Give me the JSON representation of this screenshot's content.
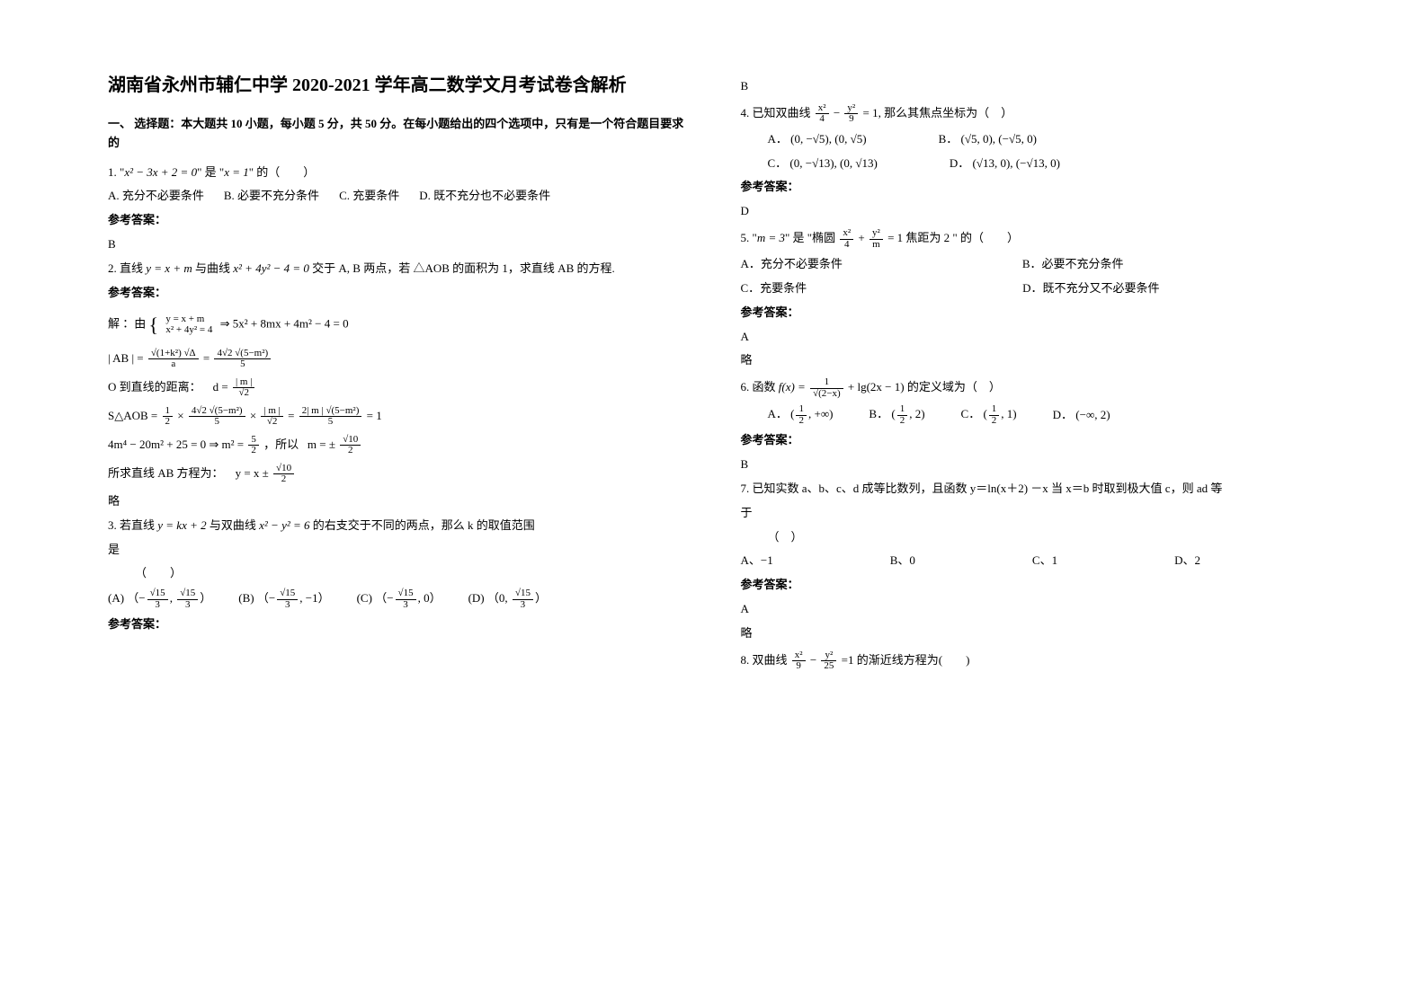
{
  "document": {
    "title": "湖南省永州市辅仁中学 2020-2021 学年高二数学文月考试卷含解析",
    "section1_heading": "一、 选择题：本大题共 10 小题，每小题 5 分，共 50 分。在每小题给出的四个选项中，只有是一个符合题目要求的",
    "answer_label": "参考答案：",
    "omit": "略"
  },
  "q1": {
    "stem_prefix": "1. \"",
    "expr1": "x² − 3x + 2 = 0",
    "mid": "\" 是 \"",
    "expr2": "x = 1",
    "suffix": "\" 的（　　）",
    "optA": "A. 充分不必要条件",
    "optB": "B. 必要不充分条件",
    "optC": "C. 充要条件",
    "optD": "D. 既不充分也不必要条件",
    "answer": "B"
  },
  "q2": {
    "stem_a": "2. 直线 ",
    "line": "y = x + m",
    "stem_b": " 与曲线 ",
    "curve": "x² + 4y² − 4 = 0",
    "stem_c": " 交于 A, B 两点，若 △AOB 的面积为 1，求直线 AB 的方程.",
    "sol_prefix": "解 ：由",
    "sys1": "y = x + m",
    "sys2": "x² + 4y² = 4",
    "sys_res": "⇒ 5x² + 8mx + 4m² − 4 = 0",
    "ab_label": "| AB | =",
    "ab_mid": "=",
    "ab_n1": "√(1+k²) √Δ",
    "ab_d1": "a",
    "ab_n2": "4√2 √(5−m²)",
    "ab_d2": "5",
    "dist_label": "O 到直线的距离：",
    "dist_d": "d =",
    "dist_n": "| m |",
    "dist_dd": "√2",
    "s_label": "S△AOB =",
    "s_part1n": "1",
    "s_part1d": "2",
    "s_part2n": "4√2 √(5−m²)",
    "s_part2d": "5",
    "s_part3n": "| m |",
    "s_part3d": "√2",
    "s_part4n": "2| m | √(5−m²)",
    "s_part4d": "5",
    "s_eq1": "= 1",
    "poly": "4m⁴ − 20m² + 25 = 0 ⇒ m² =",
    "poly_n": "5",
    "poly_d": "2",
    "poly_mid": "，所以",
    "poly_m": "m = ±",
    "poly_mn": "√10",
    "poly_md": "2",
    "final_prefix": "所求直线 AB 方程为：",
    "final_eq": "y = x ±",
    "final_n": "√10",
    "final_d": "2"
  },
  "q3": {
    "stem_a": "3. 若直线 ",
    "line": "y = kx + 2",
    "stem_b": " 与双曲线 ",
    "hyp": "x² − y² = 6",
    "stem_c": " 的右支交于不同的两点，那么 k 的取值范围",
    "stem_d": "是",
    "paren": "（　　）",
    "A": "(A)",
    "An1": "√15",
    "Ad1": "3",
    "An2": "√15",
    "Ad2": "3",
    "B": "(B)",
    "Bn": "√15",
    "Bd": "3",
    "B2": "−1",
    "C": "(C)",
    "Cn": "√15",
    "Cd": "3",
    "C2": "0",
    "D": "(D)",
    "D1": "0",
    "Dn": "√15",
    "Dd": "3",
    "answer": "B"
  },
  "q4": {
    "stem_a": "4. 已知双曲线",
    "n1": "x²",
    "d1": "4",
    "n2": "y²",
    "d2": "9",
    "stem_b": "= 1, 那么其焦点坐标为（　）",
    "A": "A．",
    "A1": "(0, −√5)",
    "A2": "(0, √5)",
    "B": "B．",
    "B1": "(√5, 0)",
    "B2": "(−√5, 0)",
    "CL": "C．",
    "C1": "(0, −√13)",
    "C2": "(0, √13)",
    "DL": "D．",
    "D1": "(√13, 0)",
    "D2": "(−√13, 0)",
    "answer": "D"
  },
  "q5": {
    "stem_a": "5. \"",
    "cond": "m = 3",
    "stem_b": "\" 是 \"椭圆",
    "n1": "x²",
    "d1": "4",
    "n2": "y²",
    "d2": "m",
    "stem_c": "= 1 焦距为 2 \" 的（　　）",
    "A": "A．充分不必要条件",
    "B": "B．必要不充分条件",
    "C": "C．充要条件",
    "D": "D．既不充分又不必要条件",
    "answer": "A"
  },
  "q6": {
    "stem_a": "6. 函数",
    "func_l": "f(x) =",
    "t1n": "1",
    "t1d": "√(2−x)",
    "plus": "+ lg(2x − 1)",
    "stem_b": "的定义域为（　）",
    "A": "A．",
    "An": "1",
    "Ad": "2",
    "Ar": "+∞)",
    "B": "B．",
    "Bn": "1",
    "Bd": "2",
    "Br": "2)",
    "C": "C．",
    "Cn": "1",
    "Cd": "2",
    "Cr": "1)",
    "D": "D．",
    "Dv": "(−∞, 2)",
    "answer": "B"
  },
  "q7": {
    "stem1": "7. 已知实数 a、b、c、d 成等比数列，且函数 y＝ln(x＋2) －x 当 x＝b 时取到极大值 c，则 ad 等",
    "stem2": "于",
    "paren": "（　）",
    "A": "A、−1",
    "B": "B、0",
    "C": "C、1",
    "D": "D、2",
    "answer": "A"
  },
  "q8": {
    "stem_a": "8. 双曲线",
    "n1": "x²",
    "d1": "9",
    "n2": "y²",
    "d2": "25",
    "stem_b": "=1 的渐近线方程为(　　)"
  }
}
